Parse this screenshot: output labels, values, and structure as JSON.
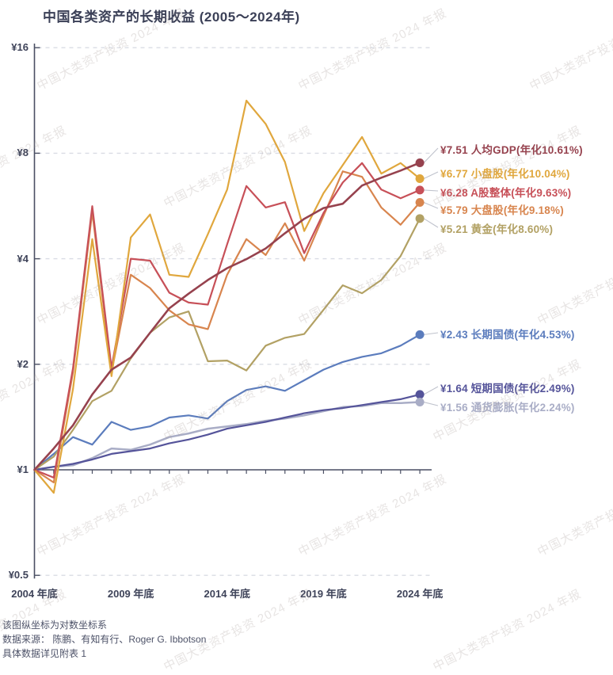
{
  "title": "中国各类资产的长期收益 (2005～2024年)",
  "watermark": "中国大类资产投资 2024 年报",
  "axes": {
    "y_ticks": [
      "¥16",
      "¥8",
      "¥4",
      "¥2",
      "¥1",
      "¥0.5"
    ],
    "y_tick_values": [
      16,
      8,
      4,
      2,
      1,
      0.5
    ],
    "x_ticks": [
      "2004 年底",
      "2009 年底",
      "2014 年底",
      "2019 年底",
      "2024 年底"
    ],
    "x_tick_years": [
      2004,
      2009,
      2014,
      2019,
      2024
    ]
  },
  "footer": {
    "note1": "该图纵坐标为对数坐标系",
    "note2": "数据来源： 陈鹏、有知有行、Roger G. Ibbotson",
    "note3": "具体数据详见附表 1"
  },
  "colors": {
    "gdp": "#96424e",
    "small_cap": "#e0a73d",
    "a_share": "#c75058",
    "large_cap": "#d8854e",
    "gold": "#b2a164",
    "long_bond": "#5b7cbd",
    "short_bond": "#55549a",
    "inflation": "#a9adc6",
    "axis": "#4a4f63",
    "grid": "#d9dce4",
    "connector": "#bfc2cc",
    "title_text": "#3b4057"
  },
  "chart_data": {
    "type": "line",
    "y_scale": "log2",
    "ylim": [
      0.5,
      16
    ],
    "grid": "horizontal-dashed",
    "legend_position": "right-of-line-ends",
    "x": [
      2004,
      2005,
      2006,
      2007,
      2008,
      2009,
      2010,
      2011,
      2012,
      2013,
      2014,
      2015,
      2016,
      2017,
      2018,
      2019,
      2020,
      2021,
      2022,
      2023,
      2024
    ],
    "series": [
      {
        "key": "gdp",
        "name": "人均GDP",
        "final_value": 7.51,
        "annualized": "10.61%",
        "label": "¥7.51 人均GDP(年化10.61%)",
        "values": [
          1,
          1.15,
          1.34,
          1.64,
          1.93,
          2.09,
          2.46,
          2.89,
          3.18,
          3.48,
          3.76,
          3.99,
          4.28,
          4.73,
          5.2,
          5.58,
          5.74,
          6.47,
          6.81,
          7.14,
          7.51
        ]
      },
      {
        "key": "small_cap",
        "name": "小盘股",
        "final_value": 6.77,
        "annualized": "10.04%",
        "label": "¥6.77 小盘股(年化10.04%)",
        "values": [
          1,
          0.86,
          1.7,
          4.55,
          1.85,
          4.6,
          5.35,
          3.6,
          3.55,
          4.7,
          6.3,
          11.3,
          9.7,
          7.55,
          4.8,
          6.15,
          7.4,
          8.9,
          7.0,
          7.5,
          6.77
        ]
      },
      {
        "key": "a_share",
        "name": "A股整体",
        "final_value": 6.28,
        "annualized": "9.63%",
        "label": "¥6.28 A股整体(年化9.63%)",
        "values": [
          1,
          0.95,
          1.95,
          5.65,
          1.95,
          4.0,
          3.95,
          3.2,
          3.0,
          2.96,
          4.4,
          6.45,
          5.6,
          5.8,
          4.15,
          5.4,
          6.6,
          7.5,
          6.3,
          5.95,
          6.28
        ]
      },
      {
        "key": "large_cap",
        "name": "大盘股",
        "final_value": 5.79,
        "annualized": "9.18%",
        "label": "¥5.79 大盘股(年化9.18%)",
        "values": [
          1,
          0.92,
          1.9,
          5.45,
          1.9,
          3.6,
          3.3,
          2.85,
          2.6,
          2.52,
          3.6,
          4.55,
          4.1,
          5.05,
          3.95,
          5.3,
          7.1,
          6.85,
          5.6,
          5.0,
          5.79
        ]
      },
      {
        "key": "gold",
        "name": "黄金",
        "final_value": 5.21,
        "annualized": "8.60%",
        "label": "¥5.21 黄金(年化8.60%)",
        "values": [
          1,
          1.09,
          1.3,
          1.57,
          1.68,
          2.08,
          2.46,
          2.72,
          2.83,
          2.04,
          2.05,
          1.92,
          2.26,
          2.38,
          2.44,
          2.86,
          3.36,
          3.19,
          3.48,
          4.07,
          5.21
        ]
      },
      {
        "key": "long_bond",
        "name": "长期国债",
        "final_value": 2.43,
        "annualized": "4.53%",
        "label": "¥2.43 长期国债(年化4.53%)",
        "values": [
          1,
          1.11,
          1.24,
          1.18,
          1.37,
          1.3,
          1.33,
          1.41,
          1.43,
          1.4,
          1.57,
          1.69,
          1.73,
          1.68,
          1.8,
          1.93,
          2.03,
          2.1,
          2.15,
          2.26,
          2.43
        ]
      },
      {
        "key": "short_bond",
        "name": "短期国债",
        "final_value": 1.64,
        "annualized": "2.49%",
        "label": "¥1.64 短期国债(年化2.49%)",
        "values": [
          1,
          1.02,
          1.04,
          1.07,
          1.11,
          1.13,
          1.15,
          1.19,
          1.22,
          1.26,
          1.31,
          1.34,
          1.37,
          1.41,
          1.45,
          1.48,
          1.5,
          1.53,
          1.56,
          1.59,
          1.64
        ]
      },
      {
        "key": "inflation",
        "name": "通货膨胀",
        "final_value": 1.56,
        "annualized": "2.24%",
        "label": "¥1.56 通货膨胀(年化2.24%)",
        "values": [
          1,
          1.02,
          1.03,
          1.08,
          1.15,
          1.14,
          1.18,
          1.24,
          1.27,
          1.31,
          1.33,
          1.35,
          1.38,
          1.4,
          1.43,
          1.47,
          1.51,
          1.52,
          1.55,
          1.55,
          1.56
        ]
      }
    ]
  }
}
